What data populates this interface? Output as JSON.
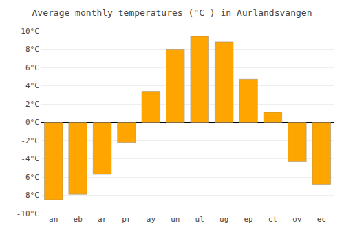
{
  "chart_data": {
    "type": "bar",
    "title": "Average monthly temperatures (°C ) in Aurlandsvangen",
    "categories": [
      "an",
      "eb",
      "ar",
      "pr",
      "ay",
      "un",
      "ul",
      "ug",
      "ep",
      "ct",
      "ov",
      "ec"
    ],
    "values": [
      -8.5,
      -7.9,
      -5.7,
      -2.2,
      3.4,
      8.0,
      9.4,
      8.8,
      4.7,
      1.1,
      -4.3,
      -6.8
    ],
    "color": "#FFA500",
    "ylim": [
      -10,
      10
    ],
    "yticks": [
      {
        "value": -10,
        "label": "-10°C"
      },
      {
        "value": -8,
        "label": "-8°C"
      },
      {
        "value": -6,
        "label": "-6°C"
      },
      {
        "value": -4,
        "label": "-4°C"
      },
      {
        "value": -2,
        "label": "-2°C"
      },
      {
        "value": 0,
        "label": "0°C"
      },
      {
        "value": 2,
        "label": "2°C"
      },
      {
        "value": 4,
        "label": "4°C"
      },
      {
        "value": 6,
        "label": "6°C"
      },
      {
        "value": 8,
        "label": "8°C"
      },
      {
        "value": 10,
        "label": "10°C"
      }
    ],
    "grid": true
  }
}
